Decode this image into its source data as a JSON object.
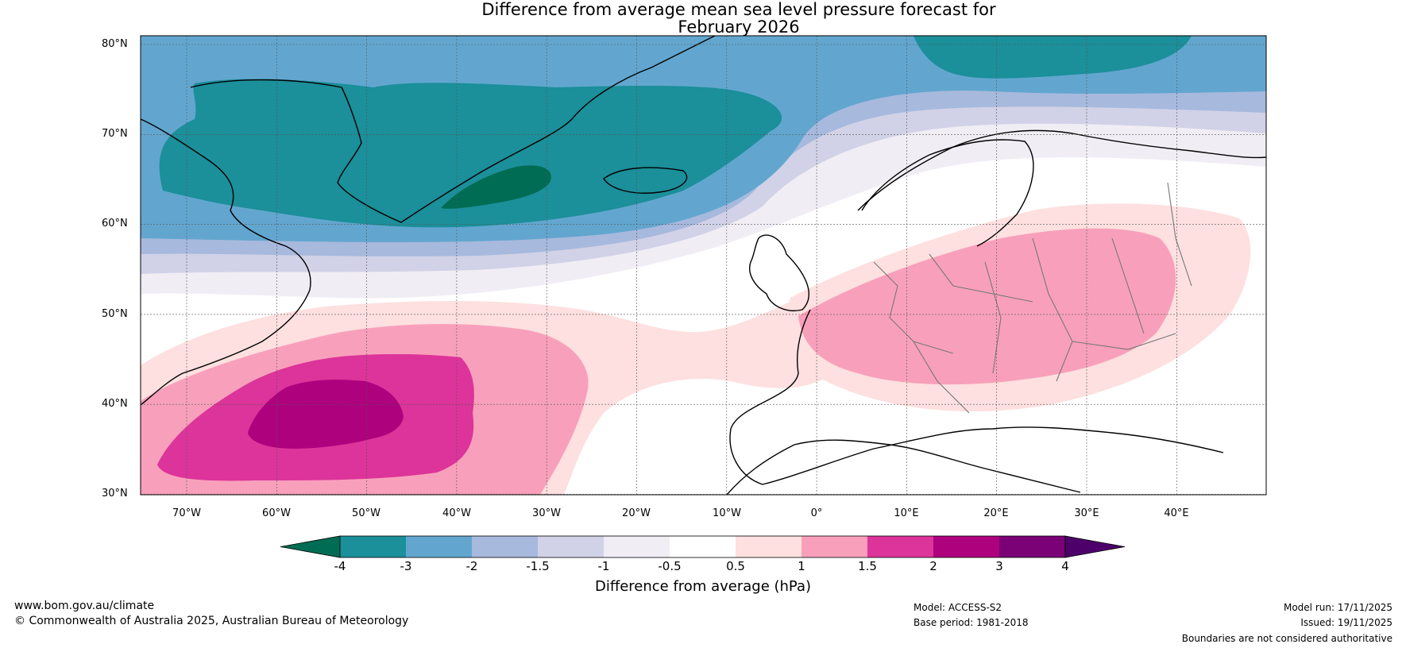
{
  "title_line1": "Difference from average mean sea level pressure forecast for",
  "title_line2": "February 2026",
  "lat_labels": [
    "80°N",
    "70°N",
    "60°N",
    "50°N",
    "40°N",
    "30°N"
  ],
  "lon_labels": [
    "70°W",
    "60°W",
    "50°W",
    "40°W",
    "30°W",
    "20°W",
    "10°W",
    "0°",
    "10°E",
    "20°E",
    "30°E",
    "40°E"
  ],
  "colorbar": {
    "label": "Difference from average (hPa)",
    "ticks": [
      "-4",
      "-3",
      "-2",
      "-1.5",
      "-1",
      "-0.5",
      "0.5",
      "1",
      "1.5",
      "2",
      "3",
      "4"
    ],
    "colors": [
      "#006c53",
      "#1b8f9a",
      "#62a6cf",
      "#a7b9dd",
      "#d1d2e7",
      "#f1edf5",
      "#ffffff",
      "#fde0df",
      "#f8a0bb",
      "#dc349a",
      "#ad017e",
      "#7b0177",
      "#4d006a"
    ]
  },
  "footer": {
    "website": "www.bom.gov.au/climate",
    "copyright": "© Commonwealth of Australia 2025, Australian Bureau of Meteorology",
    "model": "Model: ACCESS-S2",
    "base_period": "Base period: 1981-2018",
    "model_run": "Model run: 17/11/2025",
    "issued": "Issued: 19/11/2025",
    "disclaimer": "Boundaries are not considered authoritative"
  }
}
